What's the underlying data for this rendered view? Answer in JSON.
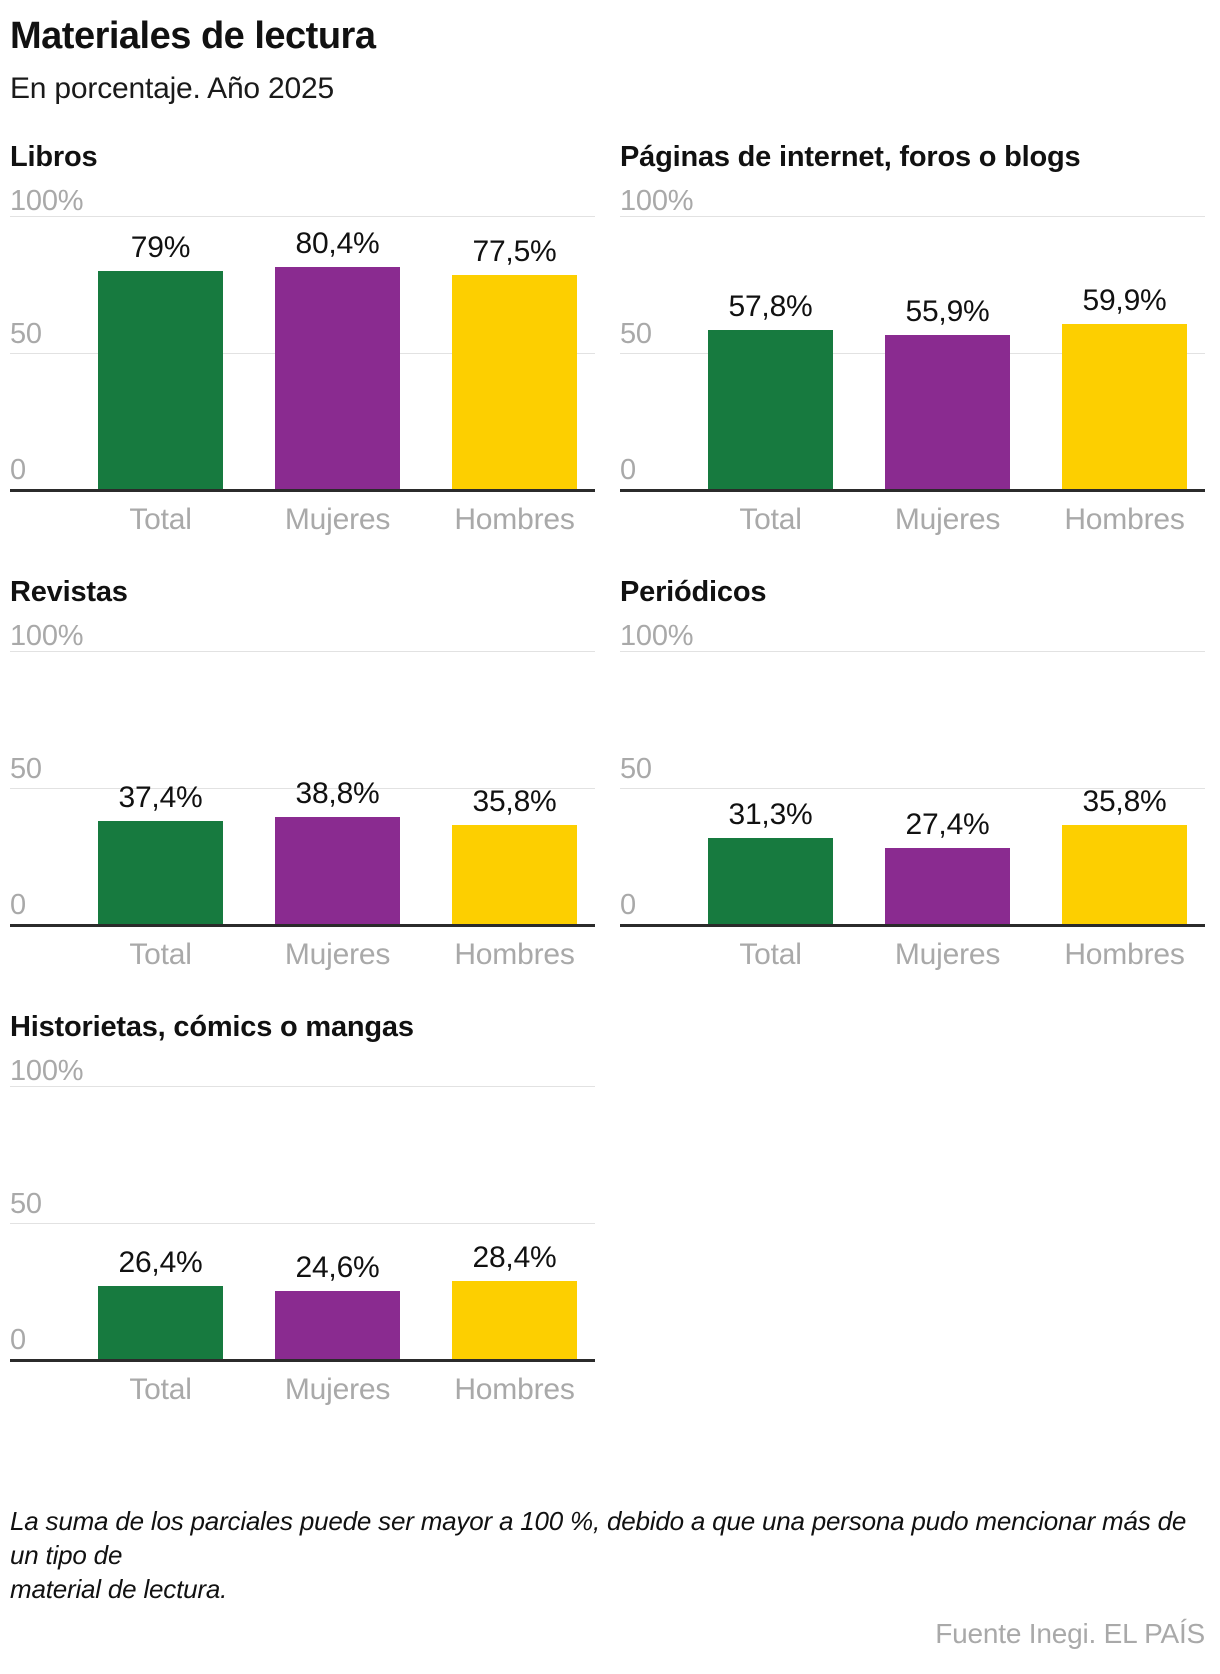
{
  "header": {
    "title": "Materiales de lectura",
    "subtitle": "En porcentaje. Año 2025"
  },
  "colors": {
    "total": "#177a3f",
    "mujeres": "#8a2b90",
    "hombres": "#fdcf00",
    "grid_light": "#e2e2e2",
    "axis_dark": "#2b2b2b",
    "muted_text": "#a9a9a9"
  },
  "axis": {
    "top_label": "100%",
    "mid_label": "50",
    "zero_label": "0"
  },
  "chart_data": [
    {
      "type": "bar",
      "title": "Libros",
      "categories": [
        "Total",
        "Mujeres",
        "Hombres"
      ],
      "values": [
        79,
        80.4,
        77.5
      ],
      "value_labels": [
        "79%",
        "80,4%",
        "77,5%"
      ],
      "bar_colors": [
        "#177a3f",
        "#8a2b90",
        "#fdcf00"
      ],
      "ylim": [
        0,
        100
      ],
      "yticks": [
        "100%",
        "50",
        "0"
      ],
      "grid": "horizontal",
      "legend": "none"
    },
    {
      "type": "bar",
      "title": "Páginas de internet, foros o blogs",
      "categories": [
        "Total",
        "Mujeres",
        "Hombres"
      ],
      "values": [
        57.8,
        55.9,
        59.9
      ],
      "value_labels": [
        "57,8%",
        "55,9%",
        "59,9%"
      ],
      "bar_colors": [
        "#177a3f",
        "#8a2b90",
        "#fdcf00"
      ],
      "ylim": [
        0,
        100
      ],
      "yticks": [
        "100%",
        "50",
        "0"
      ],
      "grid": "horizontal",
      "legend": "none"
    },
    {
      "type": "bar",
      "title": "Revistas",
      "categories": [
        "Total",
        "Mujeres",
        "Hombres"
      ],
      "values": [
        37.4,
        38.8,
        35.8
      ],
      "value_labels": [
        "37,4%",
        "38,8%",
        "35,8%"
      ],
      "bar_colors": [
        "#177a3f",
        "#8a2b90",
        "#fdcf00"
      ],
      "ylim": [
        0,
        100
      ],
      "yticks": [
        "100%",
        "50",
        "0"
      ],
      "grid": "horizontal",
      "legend": "none"
    },
    {
      "type": "bar",
      "title": "Periódicos",
      "categories": [
        "Total",
        "Mujeres",
        "Hombres"
      ],
      "values": [
        31.3,
        27.4,
        35.8
      ],
      "value_labels": [
        "31,3%",
        "27,4%",
        "35,8%"
      ],
      "bar_colors": [
        "#177a3f",
        "#8a2b90",
        "#fdcf00"
      ],
      "ylim": [
        0,
        100
      ],
      "yticks": [
        "100%",
        "50",
        "0"
      ],
      "grid": "horizontal",
      "legend": "none"
    },
    {
      "type": "bar",
      "title": "Historietas, cómics o mangas",
      "categories": [
        "Total",
        "Mujeres",
        "Hombres"
      ],
      "values": [
        26.4,
        24.6,
        28.4
      ],
      "value_labels": [
        "26,4%",
        "24,6%",
        "28,4%"
      ],
      "bar_colors": [
        "#177a3f",
        "#8a2b90",
        "#fdcf00"
      ],
      "ylim": [
        0,
        100
      ],
      "yticks": [
        "100%",
        "50",
        "0"
      ],
      "grid": "horizontal",
      "legend": "none"
    }
  ],
  "footer": {
    "note_lines": [
      "La suma de los parciales puede ser mayor a 100 %, debido a que una persona pudo mencionar más de un tipo de",
      "material de lectura."
    ],
    "source": "Fuente Inegi. EL PAÍS"
  }
}
